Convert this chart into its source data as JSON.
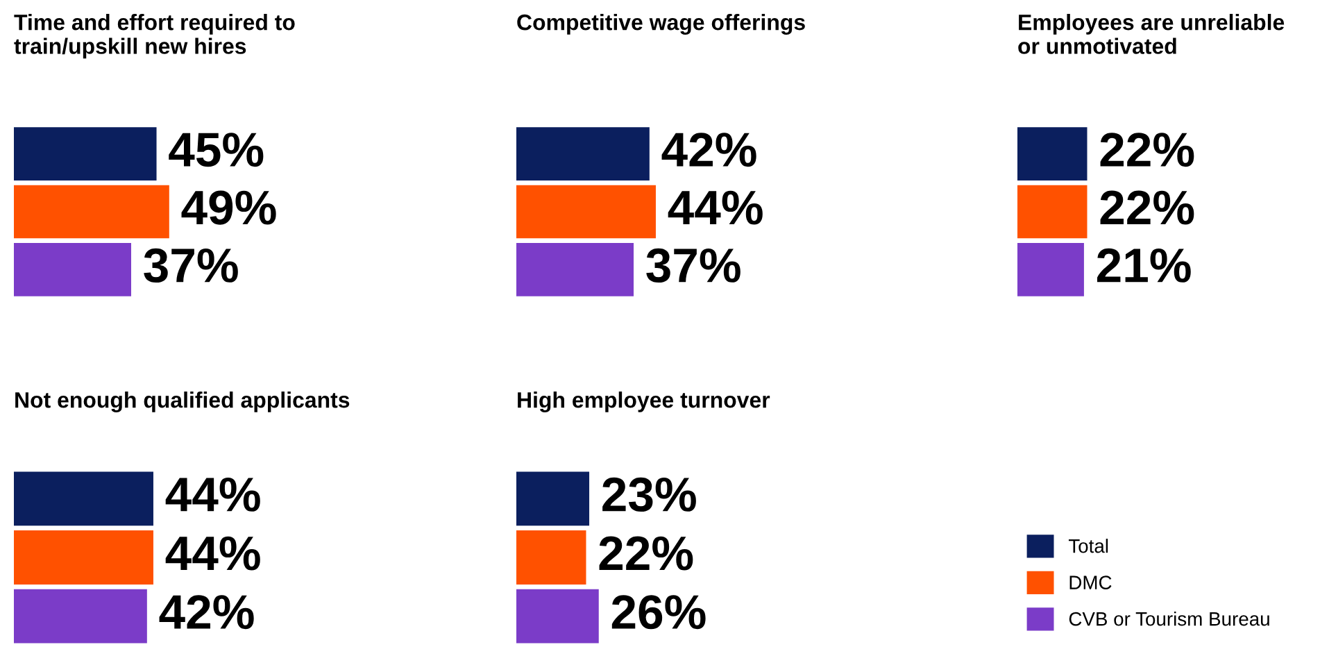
{
  "chart_data": [
    {
      "type": "bar",
      "orientation": "horizontal",
      "title": "Time and effort required to\ntrain/upskill new hires",
      "categories": [
        null
      ],
      "series": [
        {
          "color": "#0b1f5e",
          "values": [
            45
          ],
          "value_labels": [
            "45%"
          ]
        },
        {
          "color": "#ff5100",
          "values": [
            49
          ],
          "value_labels": [
            "49%"
          ]
        },
        {
          "color": "#7b3cc8",
          "values": [
            37
          ],
          "value_labels": [
            "37%"
          ]
        }
      ]
    },
    {
      "type": "bar",
      "orientation": "horizontal",
      "title": "Competitive wage offerings",
      "categories": [
        null
      ],
      "series": [
        {
          "color": "#0b1f5e",
          "values": [
            42
          ],
          "value_labels": [
            "42%"
          ]
        },
        {
          "color": "#ff5100",
          "values": [
            44
          ],
          "value_labels": [
            "44%"
          ]
        },
        {
          "color": "#7b3cc8",
          "values": [
            37
          ],
          "value_labels": [
            "37%"
          ]
        }
      ]
    },
    {
      "type": "bar",
      "orientation": "horizontal",
      "title": "Employees are unreliable\nor unmotivated",
      "categories": [
        null
      ],
      "series": [
        {
          "color": "#0b1f5e",
          "values": [
            22
          ],
          "value_labels": [
            "22%"
          ]
        },
        {
          "color": "#ff5100",
          "values": [
            22
          ],
          "value_labels": [
            "22%"
          ]
        },
        {
          "color": "#7b3cc8",
          "values": [
            21
          ],
          "value_labels": [
            "21%"
          ]
        }
      ]
    },
    {
      "type": "bar",
      "orientation": "horizontal",
      "title": "Not enough qualified applicants",
      "categories": [
        null
      ],
      "series": [
        {
          "color": "#0b1f5e",
          "values": [
            44
          ],
          "value_labels": [
            "44%"
          ]
        },
        {
          "color": "#ff5100",
          "values": [
            44
          ],
          "value_labels": [
            "44%"
          ]
        },
        {
          "color": "#7b3cc8",
          "values": [
            42
          ],
          "value_labels": [
            "42%"
          ]
        }
      ]
    },
    {
      "type": "bar",
      "orientation": "horizontal",
      "title": "High employee turnover",
      "categories": [
        null
      ],
      "legend": "right",
      "series": [
        {
          "name": "Total",
          "color": "#0b1f5e",
          "values": [
            23
          ],
          "value_labels": [
            "23%"
          ]
        },
        {
          "name": "DMC",
          "color": "#ff5100",
          "values": [
            22
          ],
          "value_labels": [
            "22%"
          ]
        },
        {
          "name": "CVB or Tourism Bureau",
          "color": "#7b3cc8",
          "values": [
            26
          ],
          "value_labels": [
            "26%"
          ]
        }
      ]
    }
  ]
}
